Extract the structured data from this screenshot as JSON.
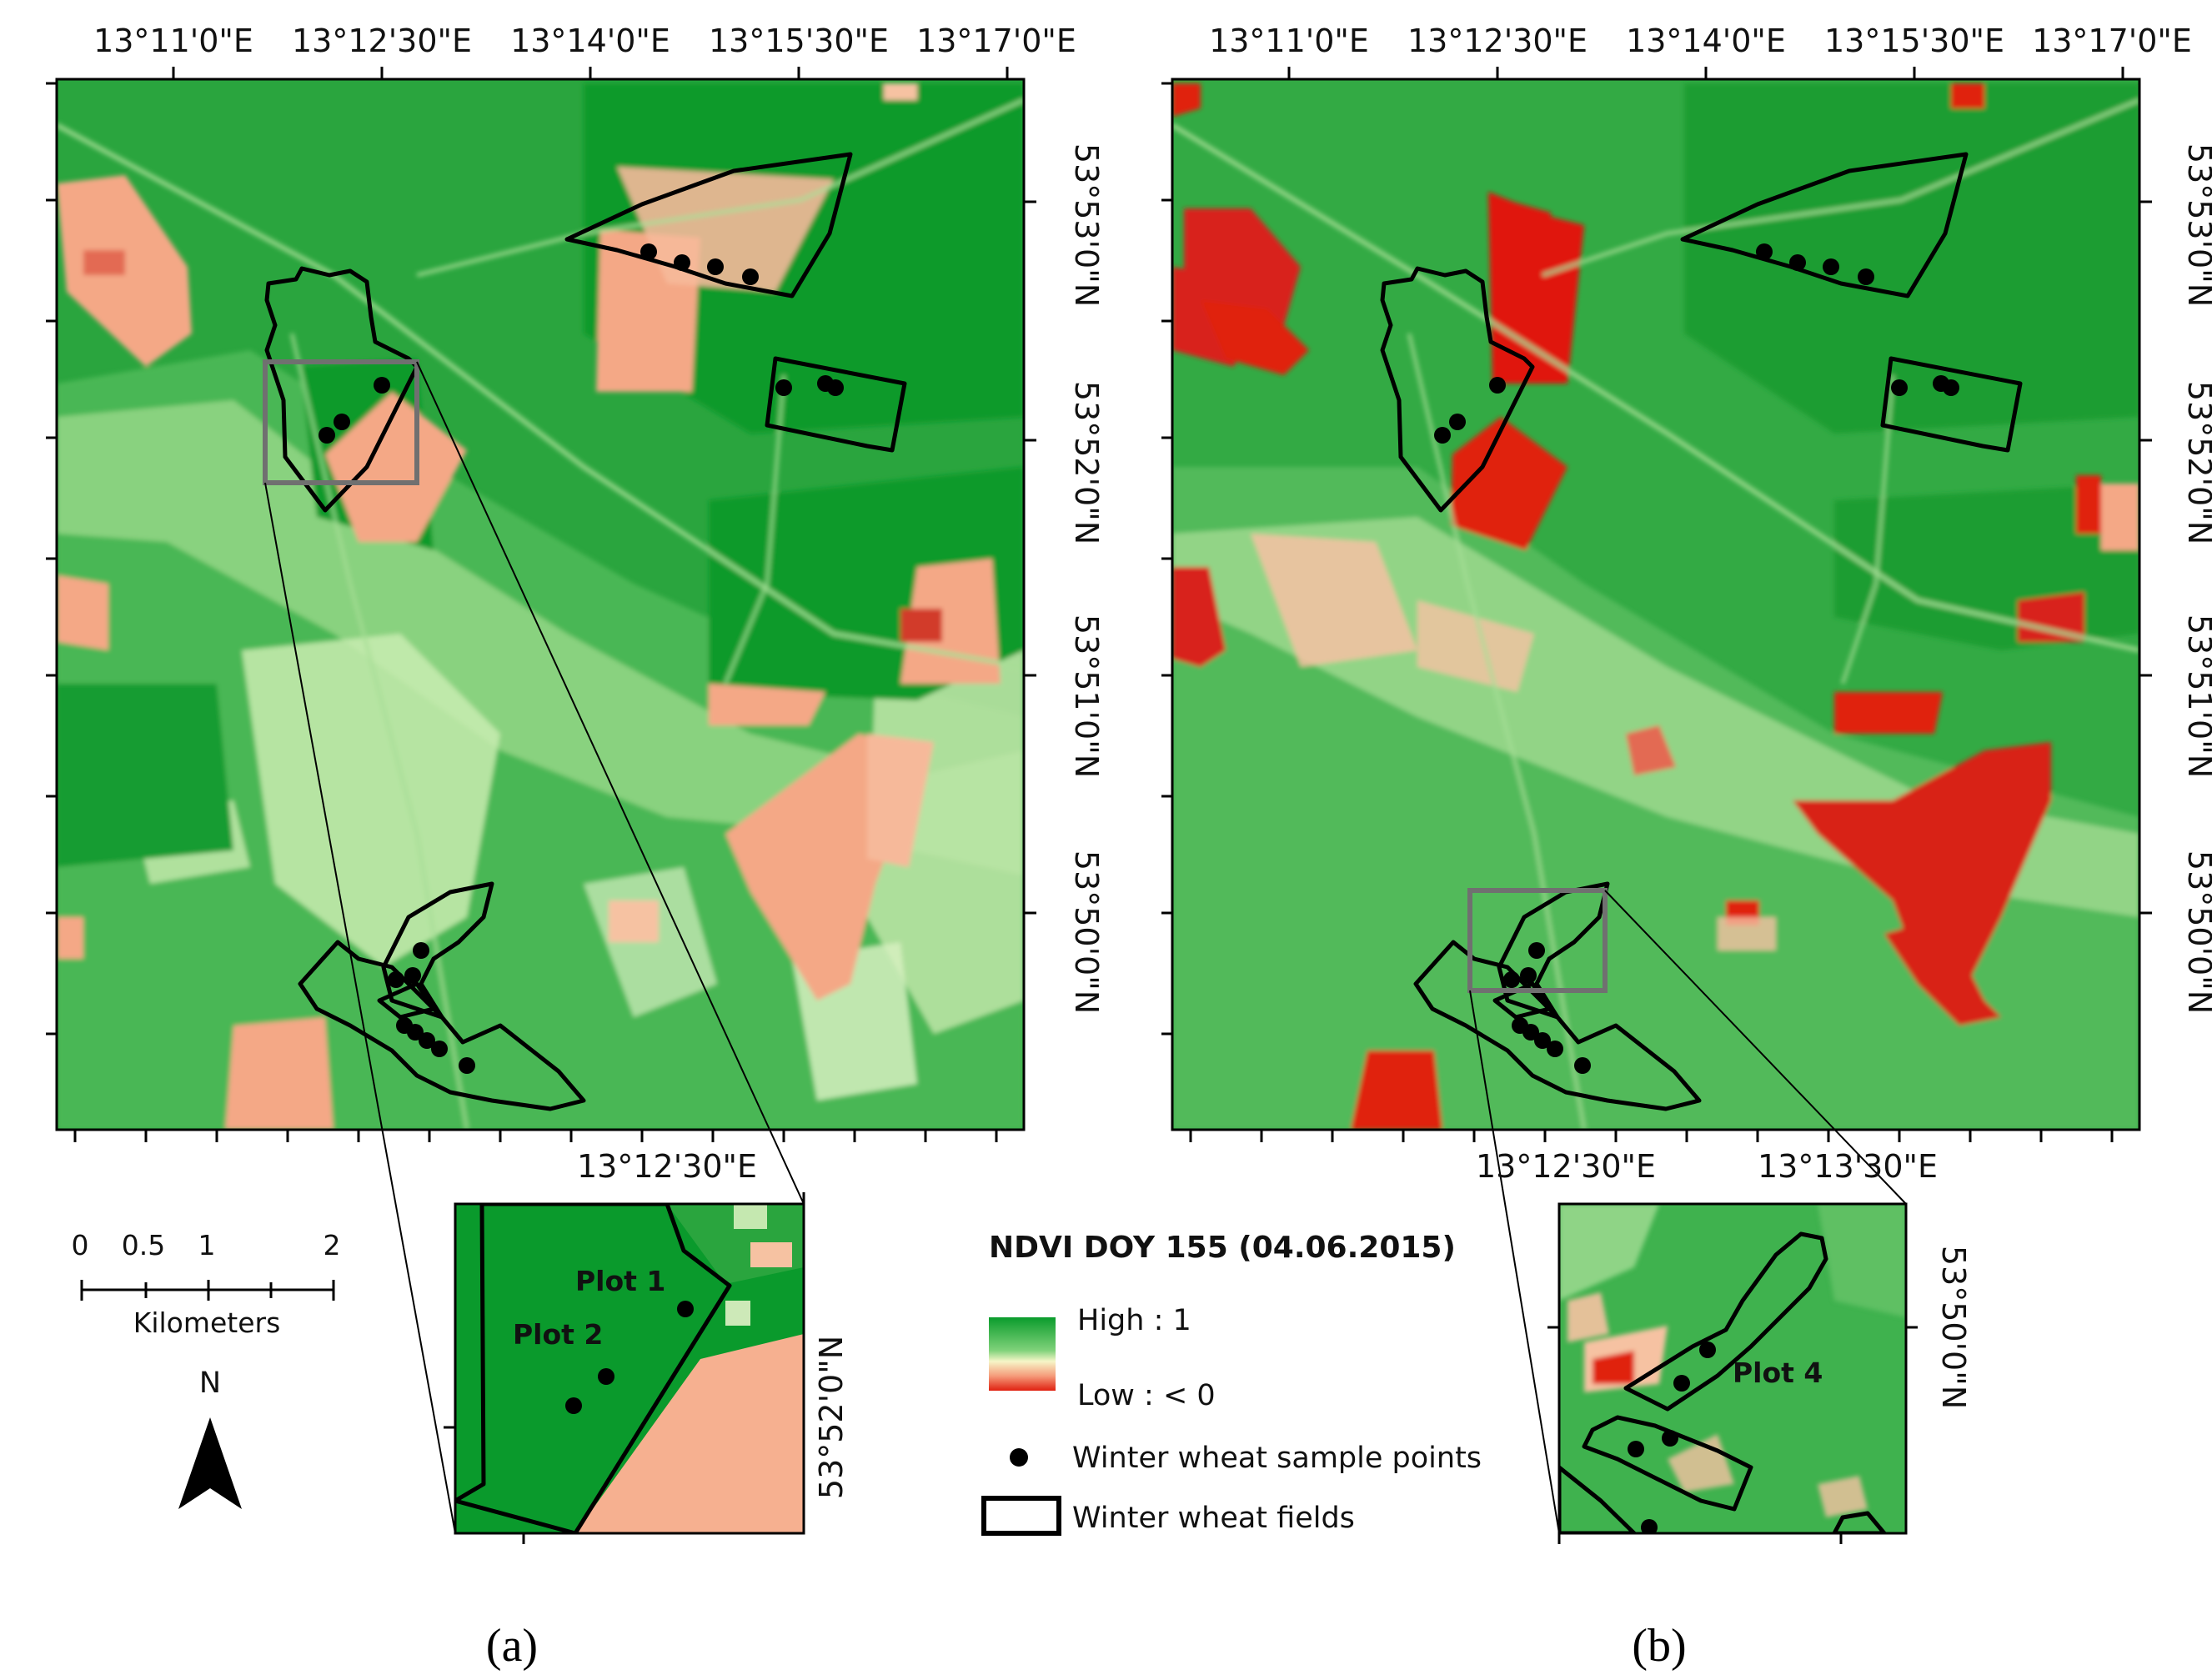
{
  "panel_a": {
    "lon_ticks": [
      "13°11'0\"E",
      "13°12'30\"E",
      "13°14'0\"E",
      "13°15'30\"E",
      "13°17'0\"E"
    ],
    "lat_ticks": [
      "53°53'0\"N",
      "53°52'0\"N",
      "53°51'0\"N",
      "53°50'0\"N"
    ],
    "inset": {
      "lon_label": "13°12'30\"E",
      "lat_label": "53°52'0\"N",
      "plot_labels": [
        "Plot 1",
        "Plot 2"
      ]
    },
    "caption": "(a)"
  },
  "panel_b": {
    "lon_ticks": [
      "13°11'0\"E",
      "13°12'30\"E",
      "13°14'0\"E",
      "13°15'30\"E",
      "13°17'0\"E"
    ],
    "lat_ticks": [
      "53°53'0\"N",
      "53°52'0\"N",
      "53°51'0\"N",
      "53°50'0\"N"
    ],
    "inset": {
      "lon_labels": [
        "13°12'30\"E",
        "13°13'30\"E"
      ],
      "lat_label": "53°50'0\"N",
      "plot_labels": [
        "Plot 4"
      ]
    },
    "caption": "(b)"
  },
  "scale_bar": {
    "ticks": [
      "0",
      "0.5",
      "1",
      "2"
    ],
    "unit": "Kilometers"
  },
  "north_arrow": {
    "label": "N"
  },
  "legend": {
    "title": "NDVI DOY 155 (04.06.2015)",
    "high": "High : 1",
    "low": "Low : < 0",
    "points": "Winter wheat sample points",
    "fields": "Winter wheat fields"
  },
  "colors": {
    "ndvi_high": "#0a9b2c",
    "ndvi_mid": "#f6f6c8",
    "ndvi_low": "#e02010",
    "field_outline": "#000000",
    "inset_box": "#707070"
  }
}
